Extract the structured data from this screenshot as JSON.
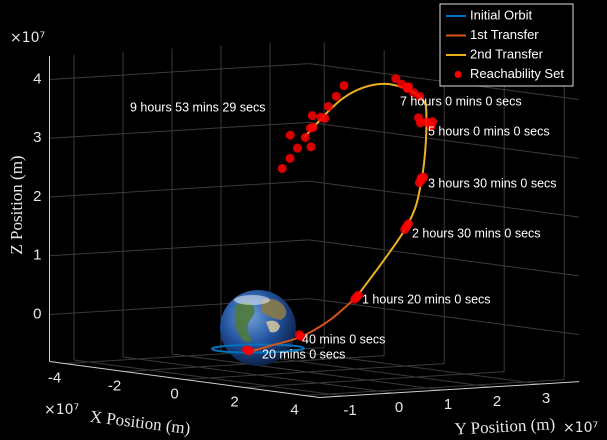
{
  "chart_data": {
    "type": "line3d",
    "xlabel": "X Position (m)",
    "ylabel": "Y Position (m)",
    "zlabel": "Z Position (m)",
    "x_multiplier": "×10⁷",
    "y_multiplier": "×10⁷",
    "z_multiplier": "×10⁷",
    "xlim": [
      -4.5,
      4.5
    ],
    "ylim": [
      -1.5,
      3.8
    ],
    "zlim": [
      -0.8,
      4.4
    ],
    "xticks": [
      -4,
      -2,
      0,
      2,
      4
    ],
    "yticks": [
      -1,
      0,
      1,
      2,
      3
    ],
    "zticks": [
      0,
      1,
      2,
      3,
      4
    ],
    "grid": true,
    "legend": "top-right",
    "series": [
      {
        "name": "Initial Orbit",
        "color": "#0072BD",
        "mode": "line",
        "x": [
          0.8,
          0.57,
          0,
          -0.57,
          -0.8,
          -0.57,
          0,
          0.57,
          0.8
        ],
        "y": [
          0,
          0.57,
          0.8,
          0.57,
          0,
          -0.57,
          -0.8,
          -0.57,
          0
        ],
        "z": [
          -0.35,
          -0.35,
          -0.35,
          -0.35,
          -0.35,
          -0.35,
          -0.35,
          -0.35,
          -0.35
        ]
      },
      {
        "name": "1st Transfer",
        "color": "#D95319",
        "mode": "line",
        "x": [
          0.57,
          1.2,
          1.93,
          2.4,
          2.96
        ],
        "y": [
          -0.57,
          -0.5,
          -0.3,
          0,
          0.2
        ],
        "z": [
          -0.35,
          -0.2,
          0,
          0.3,
          0.72
        ]
      },
      {
        "name": "2nd Transfer",
        "color": "#EDB120",
        "mode": "line",
        "x": [
          2.96,
          3.81,
          3.82,
          3.0,
          2.15,
          0.47,
          -1.52,
          -3.35
        ],
        "y": [
          0.2,
          0.7,
          1.0,
          1.6,
          2.0,
          2.3,
          2.7,
          3.0
        ],
        "z": [
          0.72,
          1.95,
          2.73,
          3.63,
          3.97,
          4.07,
          3.69,
          2.87
        ]
      },
      {
        "name": "Reachability Set",
        "color": "#FF0000",
        "mode": "markers",
        "x": [
          0.6,
          0.62,
          1.93,
          1.9,
          2.96,
          2.93,
          2.99,
          3.81,
          3.78,
          3.84,
          3.82,
          3.78,
          3.86,
          3.8,
          3.0,
          2.8,
          3.2,
          3.0,
          2.9,
          1.0,
          1.2,
          1.4,
          1.6,
          1.8,
          1.3,
          1.5,
          -3.93,
          -3.67,
          -3.42,
          -3.16,
          -2.9,
          -2.64,
          -2.39,
          -2.13,
          -1.87,
          -3.3,
          -2.6,
          -3.0,
          -2.5,
          -3.5
        ],
        "y": [
          -0.6,
          -0.55,
          -0.3,
          -0.32,
          0.2,
          0.18,
          0.22,
          0.7,
          0.68,
          0.72,
          1.0,
          0.98,
          1.02,
          1.0,
          1.6,
          1.6,
          1.6,
          1.7,
          1.5,
          2.2,
          2.2,
          2.2,
          2.2,
          2.2,
          2.25,
          2.15,
          2.9,
          2.9,
          2.9,
          2.9,
          2.9,
          2.9,
          2.9,
          2.9,
          2.9,
          3.1,
          2.7,
          3.2,
          2.6,
          2.8
        ],
        "z": [
          -0.3,
          -0.32,
          0,
          0.03,
          0.72,
          0.68,
          0.75,
          1.95,
          1.9,
          2.0,
          2.73,
          2.68,
          2.78,
          2.76,
          3.63,
          3.6,
          3.65,
          3.55,
          3.7,
          4.2,
          4.12,
          4.08,
          4.0,
          3.95,
          4.05,
          4.1,
          2.3,
          2.49,
          2.68,
          2.88,
          3.07,
          3.26,
          3.46,
          3.65,
          3.85,
          2.7,
          3.3,
          3.2,
          3.1,
          2.9
        ]
      }
    ],
    "annotations": [
      "9 hours 53 mins 29 secs",
      "7 hours 0 mins 0 secs",
      "5 hours 0 mins 0 secs",
      "3 hours 30 mins 0 secs",
      "2 hours 30 mins 0 secs",
      "1 hours 20 mins 0 secs",
      "40 mins 0 secs",
      "20 mins 0 secs"
    ]
  }
}
